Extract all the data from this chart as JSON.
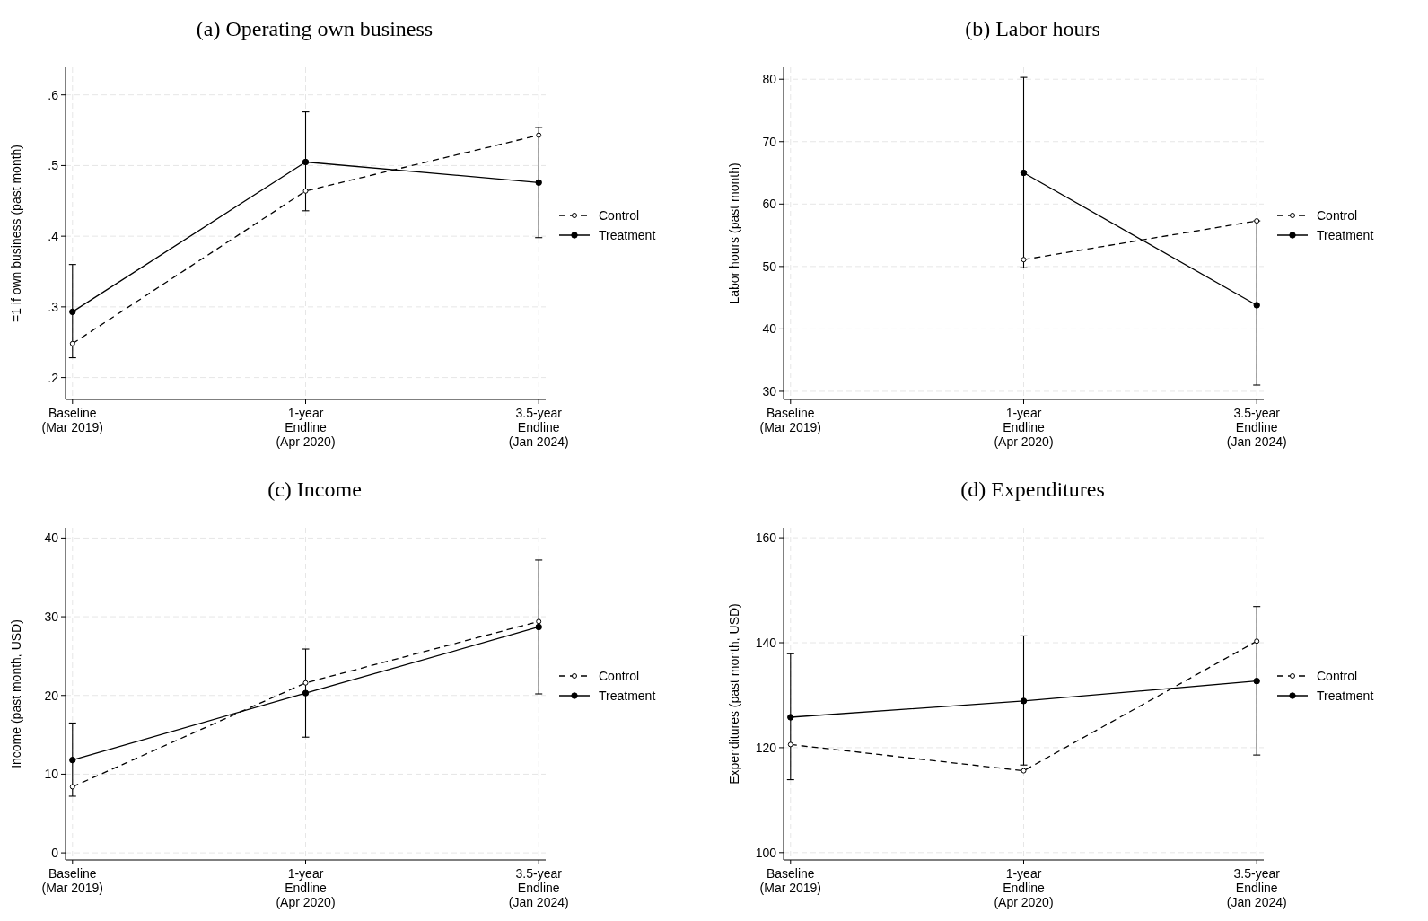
{
  "chart_data": [
    {
      "type": "line",
      "title": "(a) Operating own business",
      "ylabel": "=1 if own business (past month)",
      "categories": [
        "Baseline\n(Mar 2019)",
        "1-year\nEndline\n(Apr 2020)",
        "3.5-year\nEndline\n(Jan 2024)"
      ],
      "ylim": [
        0.169,
        0.639
      ],
      "yticks": [
        {
          "value": 0.2,
          "label": ".2"
        },
        {
          "value": 0.3,
          "label": ".3"
        },
        {
          "value": 0.4,
          "label": ".4"
        },
        {
          "value": 0.5,
          "label": ".5"
        },
        {
          "value": 0.6,
          "label": ".6"
        }
      ],
      "grid": true,
      "legend": "right",
      "marker": "circle",
      "series": [
        {
          "name": "Control",
          "color": "#000000",
          "line_style": "dashed",
          "values": [
            0.248,
            0.464,
            0.543
          ]
        },
        {
          "name": "Treatment",
          "color": "#000000",
          "line_style": "solid",
          "values": [
            0.293,
            0.505,
            0.476
          ],
          "errors": [
            [
              0.228,
              0.36
            ],
            [
              0.436,
              0.576
            ],
            [
              0.398,
              0.554
            ]
          ]
        }
      ]
    },
    {
      "type": "line",
      "title": "(b) Labor hours",
      "ylabel": "Labor hours (past month)",
      "categories": [
        "Baseline\n(Mar 2019)",
        "1-year\nEndline\n(Apr 2020)",
        "3.5-year\nEndline\n(Jan 2024)"
      ],
      "ylim": [
        28.7,
        81.9
      ],
      "yticks": [
        30,
        40,
        50,
        60,
        70,
        80
      ],
      "grid": true,
      "legend": "right",
      "marker": "circle",
      "series": [
        {
          "name": "Control",
          "color": "#000000",
          "line_style": "dashed",
          "values": [
            null,
            51.1,
            57.3
          ]
        },
        {
          "name": "Treatment",
          "color": "#000000",
          "line_style": "solid",
          "values": [
            null,
            65,
            43.8
          ],
          "errors": [
            null,
            [
              49.8,
              80.3
            ],
            [
              31,
              57.3
            ]
          ]
        }
      ]
    },
    {
      "type": "line",
      "title": "(c) Income",
      "ylabel": "Income (past month, USD)",
      "categories": [
        "Baseline\n(Mar 2019)",
        "1-year\nEndline\n(Apr 2020)",
        "3.5-year\nEndline\n(Jan 2024)"
      ],
      "ylim": [
        -0.9,
        41.3
      ],
      "yticks": [
        0,
        10,
        20,
        30,
        40
      ],
      "grid": true,
      "legend": "right",
      "marker": "circle",
      "series": [
        {
          "name": "Control",
          "color": "#000000",
          "line_style": "dashed",
          "values": [
            8.4,
            21.6,
            29.4
          ]
        },
        {
          "name": "Treatment",
          "color": "#000000",
          "line_style": "solid",
          "values": [
            11.8,
            20.3,
            28.7
          ],
          "errors": [
            [
              7.2,
              16.5
            ],
            [
              14.7,
              25.9
            ],
            [
              20.2,
              37.2
            ]
          ]
        }
      ]
    },
    {
      "type": "line",
      "title": "(d) Expenditures",
      "ylabel": "Expenditures (past month, USD)",
      "categories": [
        "Baseline\n(Mar 2019)",
        "1-year\nEndline\n(Apr 2020)",
        "3.5-year\nEndline\n(Jan 2024)"
      ],
      "ylim": [
        98.6,
        161.9
      ],
      "yticks": [
        100,
        120,
        140,
        160
      ],
      "grid": true,
      "legend": "right",
      "marker": "circle",
      "series": [
        {
          "name": "Control",
          "color": "#000000",
          "line_style": "dashed",
          "values": [
            120.6,
            115.6,
            140.3
          ]
        },
        {
          "name": "Treatment",
          "color": "#000000",
          "line_style": "solid",
          "values": [
            125.8,
            128.9,
            132.7
          ],
          "errors": [
            [
              113.9,
              137.9
            ],
            [
              116.7,
              141.3
            ],
            [
              118.6,
              146.9
            ]
          ]
        }
      ]
    }
  ]
}
